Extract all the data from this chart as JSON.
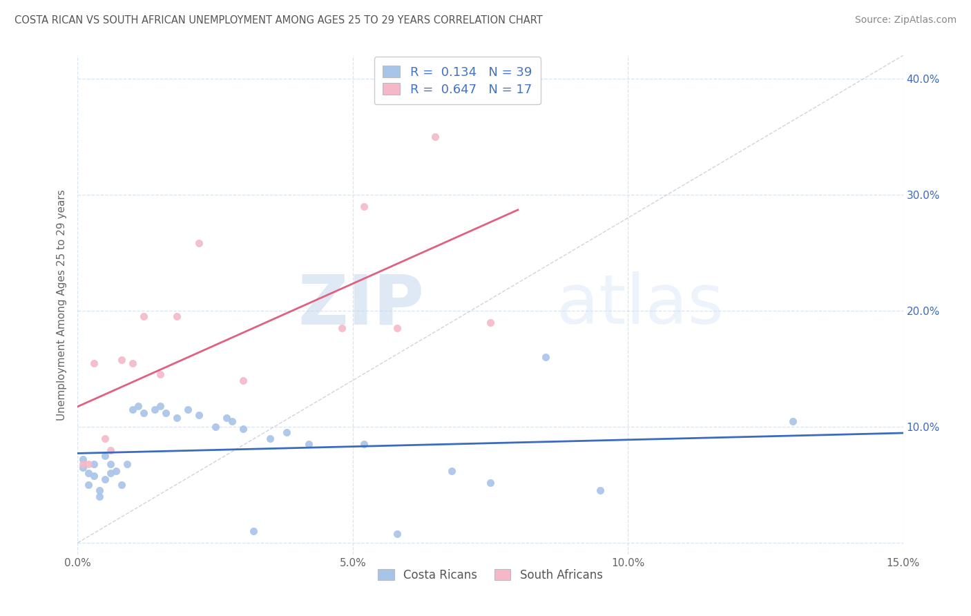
{
  "title": "COSTA RICAN VS SOUTH AFRICAN UNEMPLOYMENT AMONG AGES 25 TO 29 YEARS CORRELATION CHART",
  "source": "Source: ZipAtlas.com",
  "ylabel": "Unemployment Among Ages 25 to 29 years",
  "xlim": [
    0.0,
    0.15
  ],
  "ylim": [
    -0.01,
    0.42
  ],
  "x_ticks": [
    0.0,
    0.05,
    0.1,
    0.15
  ],
  "x_tick_labels": [
    "0.0%",
    "5.0%",
    "10.0%",
    "15.0%"
  ],
  "y_ticks": [
    0.0,
    0.1,
    0.2,
    0.3,
    0.4
  ],
  "right_tick_labels": [
    "",
    "10.0%",
    "20.0%",
    "30.0%",
    "40.0%"
  ],
  "cr_color": "#a8c4e8",
  "sa_color": "#f4b8c8",
  "cr_line_color": "#3a6bbf",
  "sa_line_color": "#e06080",
  "ref_line_color": "#c8c8d0",
  "cr_R": 0.134,
  "cr_N": 39,
  "sa_R": 0.647,
  "sa_N": 17,
  "watermark_zip": "ZIP",
  "watermark_atlas": "atlas",
  "background_color": "#ffffff",
  "grid_color": "#d8e4f0",
  "figsize": [
    14.06,
    8.92
  ],
  "dpi": 100,
  "costa_ricans_x": [
    0.001,
    0.001,
    0.002,
    0.002,
    0.003,
    0.003,
    0.004,
    0.004,
    0.005,
    0.005,
    0.006,
    0.006,
    0.007,
    0.008,
    0.009,
    0.01,
    0.011,
    0.012,
    0.014,
    0.015,
    0.016,
    0.018,
    0.02,
    0.022,
    0.025,
    0.027,
    0.028,
    0.03,
    0.032,
    0.035,
    0.038,
    0.042,
    0.052,
    0.058,
    0.068,
    0.075,
    0.085,
    0.095,
    0.13
  ],
  "costa_ricans_y": [
    0.072,
    0.065,
    0.06,
    0.05,
    0.068,
    0.058,
    0.045,
    0.04,
    0.075,
    0.055,
    0.068,
    0.06,
    0.062,
    0.05,
    0.068,
    0.115,
    0.118,
    0.112,
    0.115,
    0.118,
    0.112,
    0.108,
    0.115,
    0.11,
    0.1,
    0.108,
    0.105,
    0.098,
    0.01,
    0.09,
    0.095,
    0.085,
    0.085,
    0.008,
    0.062,
    0.052,
    0.16,
    0.045,
    0.105
  ],
  "south_africans_x": [
    0.001,
    0.002,
    0.003,
    0.005,
    0.006,
    0.008,
    0.01,
    0.012,
    0.015,
    0.018,
    0.022,
    0.03,
    0.048,
    0.052,
    0.058,
    0.065,
    0.075
  ],
  "south_africans_y": [
    0.068,
    0.068,
    0.155,
    0.09,
    0.08,
    0.158,
    0.155,
    0.195,
    0.145,
    0.195,
    0.258,
    0.14,
    0.185,
    0.29,
    0.185,
    0.35,
    0.19
  ]
}
